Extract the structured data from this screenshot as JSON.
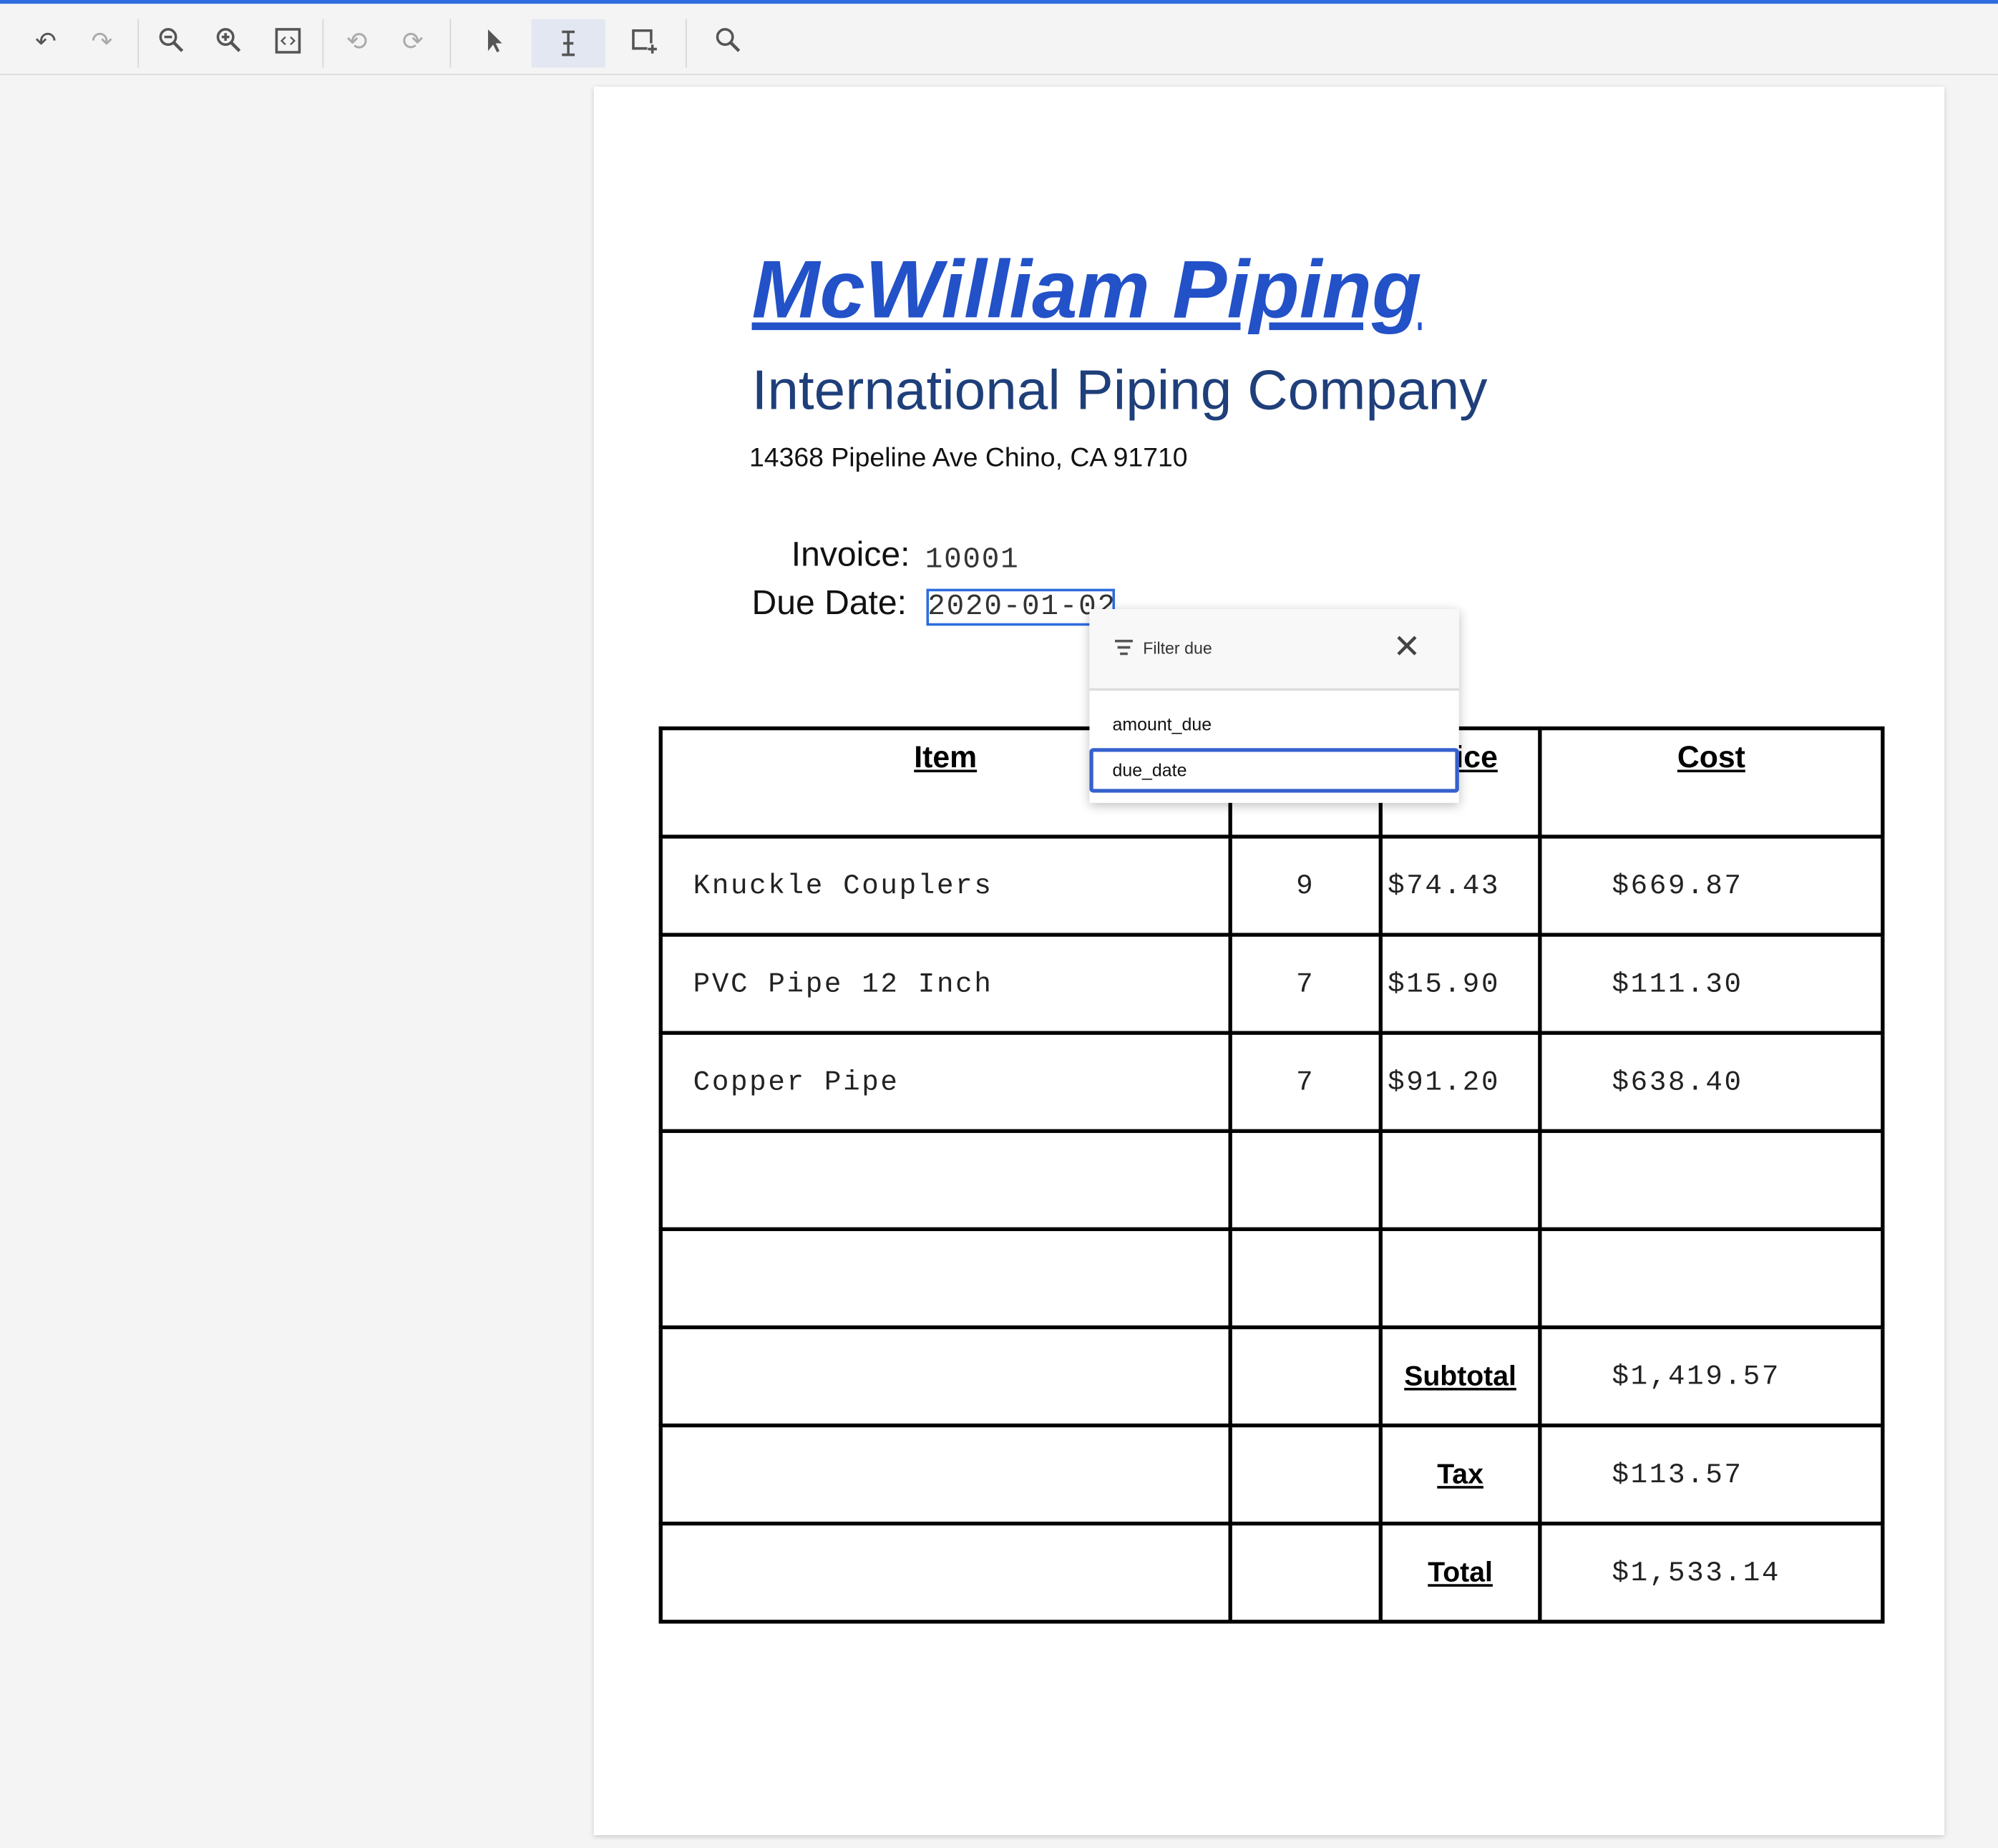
{
  "toolbar": {
    "items": [
      {
        "icon": "undo-icon"
      },
      {
        "icon": "redo-icon"
      },
      {
        "icon": "zoom-out-icon"
      },
      {
        "icon": "zoom-in-icon"
      },
      {
        "icon": "fit-page-icon"
      },
      {
        "icon": "rotate-left-icon"
      },
      {
        "icon": "rotate-right-icon"
      },
      {
        "icon": "pointer-icon"
      },
      {
        "icon": "text-select-icon",
        "active": true
      },
      {
        "icon": "add-field-icon"
      },
      {
        "icon": "search-icon"
      }
    ],
    "accent_color": "#2d6cdf"
  },
  "document": {
    "title": "McWilliam Piping",
    "subtitle": "International Piping Company",
    "address": "14368 Pipeline Ave Chino, CA 91710",
    "invoice_label": "Invoice:",
    "invoice_value": "10001",
    "due_label": "Due Date:",
    "due_value": "2020-01-02",
    "table": {
      "headers": [
        "Item",
        "",
        "Price",
        "Cost"
      ],
      "rows": [
        [
          "Knuckle Couplers",
          "9",
          "$74.43",
          "$669.87"
        ],
        [
          "PVC Pipe 12 Inch",
          "7",
          "$15.90",
          "$111.30"
        ],
        [
          "Copper Pipe",
          "7",
          "$91.20",
          "$638.40"
        ],
        [
          "",
          "",
          "",
          ""
        ],
        [
          "",
          "",
          "",
          ""
        ]
      ],
      "totals": [
        {
          "label": "Subtotal",
          "value": "$1,419.57"
        },
        {
          "label": "Tax",
          "value": "$113.57"
        },
        {
          "label": "Total",
          "value": "$1,533.14"
        }
      ]
    }
  },
  "popup": {
    "title": "Filter due",
    "options": [
      "amount_due",
      "due_date"
    ],
    "selected": "due_date"
  }
}
